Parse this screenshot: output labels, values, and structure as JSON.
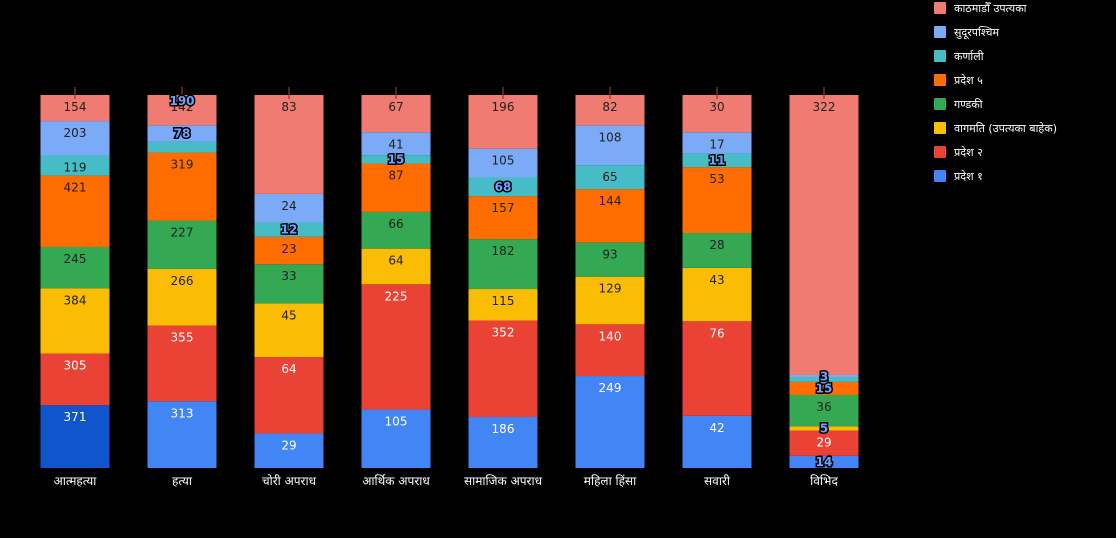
{
  "chart_data": {
    "type": "bar",
    "stacked": true,
    "normalized": true,
    "categories": [
      "आत्महत्या",
      "हत्या",
      "चोरी अपराध",
      "आर्थिक अपराध",
      "सामाजिक अपराध",
      "महिला हिंसा",
      "सवारी",
      "विभिद"
    ],
    "series": [
      {
        "name": "प्रदेश १",
        "color": "#4285f4",
        "values": [
          371,
          313,
          29,
          105,
          186,
          249,
          42,
          14
        ]
      },
      {
        "name": "प्रदेश २",
        "color": "#ea4335",
        "values": [
          305,
          355,
          64,
          225,
          352,
          140,
          76,
          29
        ]
      },
      {
        "name": "वागमति (उपत्यका बाहेक)",
        "color": "#fbbc04",
        "values": [
          384,
          266,
          45,
          64,
          115,
          129,
          43,
          5
        ]
      },
      {
        "name": "गण्डकी",
        "color": "#34a853",
        "values": [
          245,
          227,
          33,
          66,
          182,
          93,
          28,
          36
        ]
      },
      {
        "name": "प्रदेश ५",
        "color": "#ff6d01",
        "values": [
          421,
          319,
          23,
          87,
          157,
          144,
          53,
          15
        ]
      },
      {
        "name": "कर्णाली",
        "color": "#46bdc6",
        "values": [
          119,
          50,
          12,
          15,
          68,
          65,
          11,
          5
        ]
      },
      {
        "name": "सुदूरपश्चिम",
        "color": "#7baaf7",
        "values": [
          203,
          78,
          24,
          41,
          105,
          108,
          17,
          3
        ]
      },
      {
        "name": "काठमाडौँ उपत्यका",
        "color": "#f07b72",
        "values": [
          154,
          142,
          83,
          67,
          196,
          82,
          30,
          322
        ]
      }
    ],
    "extra_labels": {
      "1": [
        "190"
      ]
    },
    "first_bar_color": "#1155cc",
    "hidden_labels": {
      "1": [
        5
      ]
    },
    "legend_position": "right"
  }
}
